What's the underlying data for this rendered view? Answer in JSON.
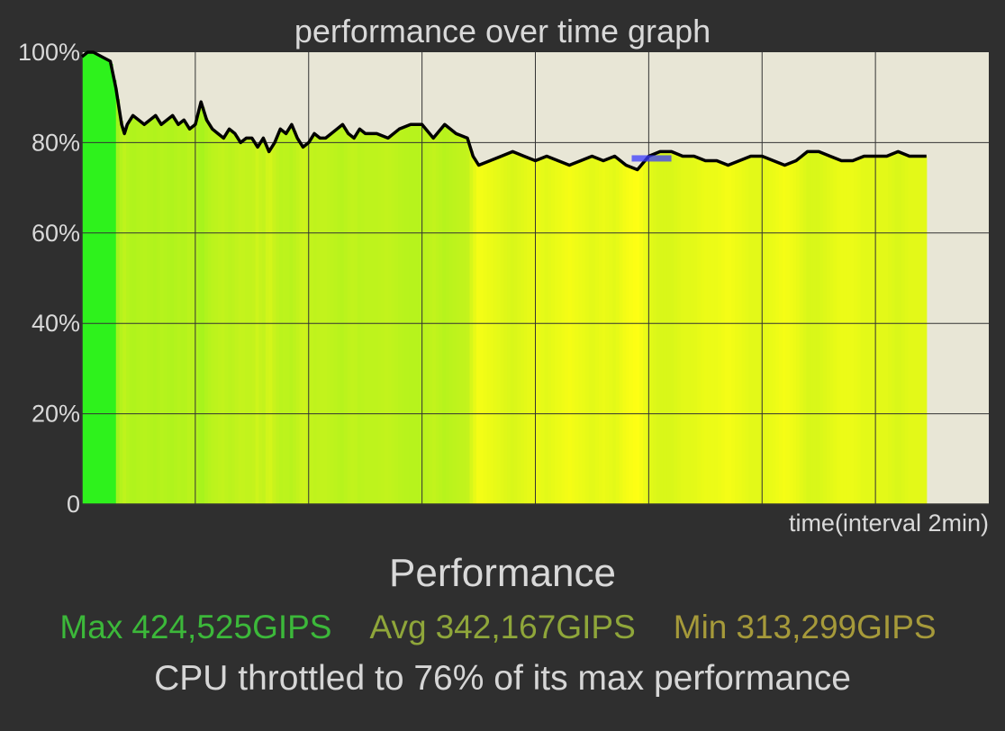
{
  "app": {
    "section_title": "Performance",
    "stats": {
      "max": {
        "label": "Max",
        "value": "424,525GIPS",
        "color": "#3cb83a"
      },
      "avg": {
        "label": "Avg",
        "value": "342,167GIPS",
        "color": "#8fa63a"
      },
      "min": {
        "label": "Min",
        "value": "313,299GIPS",
        "color": "#a69a3a"
      }
    },
    "message": "CPU throttled to 76% of its max performance"
  },
  "chart_data": {
    "type": "area",
    "title": "performance over time graph",
    "xlabel": "time(interval 2min)",
    "ylabel": "",
    "ylim": [
      0,
      100
    ],
    "yticks": [
      "0",
      "20%",
      "40%",
      "60%",
      "80%",
      "100%"
    ],
    "grid": true,
    "x_interval_minutes": 2,
    "xlim_minutes": [
      0,
      16
    ],
    "x_unit": "minutes",
    "series": [
      {
        "x": [
          0,
          0.1,
          0.2,
          0.35,
          0.5,
          0.6,
          0.65,
          0.7,
          0.75,
          0.8,
          0.9,
          1.0,
          1.1,
          1.2,
          1.3,
          1.4,
          1.5,
          1.6,
          1.7,
          1.8,
          1.9,
          2.0,
          2.1,
          2.2,
          2.3,
          2.4,
          2.5,
          2.6,
          2.7,
          2.8,
          2.9,
          3.0,
          3.1,
          3.2,
          3.3,
          3.4,
          3.5,
          3.6,
          3.7,
          3.8,
          3.9,
          4.0,
          4.1,
          4.2,
          4.3,
          4.4,
          4.5,
          4.6,
          4.7,
          4.8,
          4.9,
          5.0,
          5.2,
          5.4,
          5.6,
          5.8,
          6.0,
          6.2,
          6.4,
          6.6,
          6.8,
          6.9,
          7.0,
          7.2,
          7.4,
          7.6,
          7.8,
          8.0,
          8.2,
          8.4,
          8.6,
          8.8,
          9.0,
          9.2,
          9.4,
          9.6,
          9.8,
          10.0,
          10.2,
          10.4,
          10.6,
          10.8,
          11.0,
          11.2,
          11.4,
          11.6,
          11.8,
          12.0,
          12.2,
          12.4,
          12.6,
          12.8,
          13.0,
          13.2,
          13.4,
          13.6,
          13.8,
          14.0,
          14.2,
          14.4,
          14.6,
          14.9
        ],
        "values": [
          99,
          100,
          100,
          99,
          98,
          92,
          88,
          84,
          82,
          84,
          86,
          85,
          84,
          85,
          86,
          84,
          85,
          86,
          84,
          85,
          83,
          84,
          89,
          85,
          83,
          82,
          81,
          83,
          82,
          80,
          81,
          81,
          79,
          81,
          78,
          80,
          83,
          82,
          84,
          81,
          79,
          80,
          82,
          81,
          81,
          82,
          83,
          84,
          82,
          81,
          83,
          82,
          82,
          81,
          83,
          84,
          84,
          81,
          84,
          82,
          81,
          77,
          75,
          76,
          77,
          78,
          77,
          76,
          77,
          76,
          75,
          76,
          77,
          76,
          77,
          75,
          74,
          77,
          78,
          78,
          77,
          77,
          76,
          76,
          75,
          76,
          77,
          77,
          76,
          75,
          76,
          78,
          78,
          77,
          76,
          76,
          77,
          77,
          77,
          78,
          77,
          77
        ]
      }
    ],
    "colors": {
      "line": "#000000",
      "plot_background": "#e8e6d6",
      "grid": "#333333",
      "fill_high": "#2ef21c",
      "fill_mid": "#c6f31c",
      "fill_low": "#ffff14",
      "highlight": "#3c3cff"
    }
  }
}
